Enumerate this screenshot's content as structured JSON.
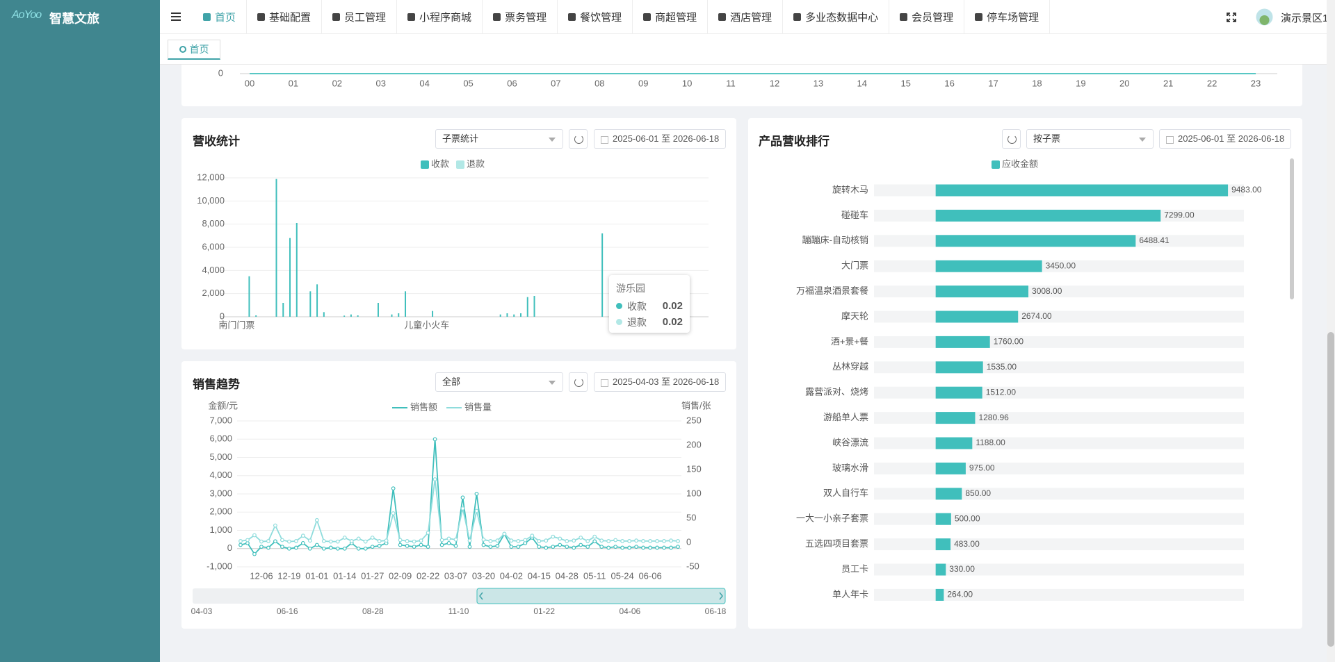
{
  "header": {
    "logo": "AoYoo",
    "brand": "智慧文旅",
    "nav": [
      "首页",
      "基础配置",
      "员工管理",
      "小程序商城",
      "票务管理",
      "餐饮管理",
      "商超管理",
      "酒店管理",
      "多业态数据中心",
      "会员管理",
      "停车场管理"
    ],
    "user": "演示景区1"
  },
  "tabs": [
    "首页"
  ],
  "chart_data": [
    {
      "type": "line",
      "categories": [
        "00",
        "01",
        "02",
        "03",
        "04",
        "05",
        "06",
        "07",
        "08",
        "09",
        "10",
        "11",
        "12",
        "13",
        "14",
        "15",
        "16",
        "17",
        "18",
        "19",
        "20",
        "21",
        "22",
        "23"
      ],
      "values": [
        0,
        0,
        0,
        0,
        0,
        0,
        0,
        0,
        0,
        0,
        0,
        0,
        0,
        0,
        0,
        0,
        0,
        0,
        0,
        0,
        0,
        0,
        0,
        0
      ],
      "color": "#40bfbc",
      "yticks": [
        0
      ],
      "grid": true
    },
    {
      "type": "bar",
      "title": "营收统计",
      "filter": "子票统计",
      "date_range": "2025-06-01 至 2026-06-18",
      "categories": [
        null,
        null,
        "南门门票",
        null,
        null,
        null,
        null,
        null,
        null,
        null,
        null,
        null,
        null,
        null,
        null,
        null,
        null,
        null,
        null,
        null,
        null,
        null,
        null,
        null,
        null,
        null,
        null,
        null,
        null,
        null,
        "儿童小火车",
        null,
        null,
        null,
        null,
        null,
        null,
        null,
        null,
        null,
        null,
        null,
        null,
        null,
        null,
        null,
        null,
        null,
        null,
        null,
        null,
        null,
        null,
        null,
        null,
        null,
        null,
        null,
        null,
        null,
        null,
        null,
        null,
        null,
        null,
        null,
        null,
        null,
        null,
        null,
        null,
        null
      ],
      "series": [
        {
          "name": "收款",
          "color": "#40bfbc",
          "values": [
            0,
            0,
            0,
            0,
            3500,
            120,
            0,
            0,
            11900,
            1200,
            6800,
            8100,
            0,
            2200,
            2800,
            400,
            0,
            0,
            100,
            200,
            120,
            0,
            0,
            1200,
            0,
            200,
            300,
            2200,
            0,
            0,
            0,
            500,
            0,
            0,
            0,
            0,
            0,
            0,
            0,
            0,
            0,
            200,
            300,
            200,
            300,
            1700,
            1800,
            0,
            0,
            0,
            0,
            0,
            0,
            0,
            0,
            0,
            7200,
            0,
            0,
            0,
            0,
            0,
            0,
            0,
            0,
            0,
            0,
            0,
            0,
            0,
            0,
            0
          ]
        },
        {
          "name": "退款",
          "color": "#b2e8e6",
          "values": [
            0,
            0,
            0,
            0,
            0,
            0,
            0,
            0,
            0,
            0,
            0,
            0,
            0,
            0,
            0,
            0,
            0,
            0,
            0,
            0,
            0,
            0,
            0,
            0,
            0,
            0,
            0,
            0,
            0,
            0,
            0,
            0,
            0,
            0,
            0,
            0,
            0,
            0,
            0,
            0,
            0,
            0,
            0,
            0,
            0,
            0,
            0,
            0,
            0,
            0,
            0,
            0,
            0,
            0,
            0,
            0,
            0,
            0,
            0,
            0,
            0,
            0,
            0,
            0,
            0,
            0,
            0,
            0,
            0,
            0,
            0,
            0
          ]
        }
      ],
      "ylim": [
        0,
        12000
      ],
      "yticks": [
        0,
        {
          "value": 2000,
          "label": "2,000"
        },
        {
          "value": 4000,
          "label": "4,000"
        },
        {
          "value": 6000,
          "label": "6,000"
        },
        {
          "value": 8000,
          "label": "8,000"
        },
        {
          "value": 10000,
          "label": "10,000"
        },
        {
          "value": 12000,
          "label": "12,000"
        }
      ],
      "grid": true,
      "legend": "top",
      "tooltip": {
        "title": "游乐园",
        "items": [
          {
            "name": "收款",
            "value": 0.02
          },
          {
            "name": "退款",
            "value": 0.02
          }
        ]
      }
    },
    {
      "type": "line",
      "title": "销售趋势",
      "filter": "全部",
      "date_range": "2025-04-03 至 2026-06-18",
      "ylabel": "金额/元",
      "y2label": "销售/张",
      "categories": [
        null,
        null,
        null,
        "12-06",
        null,
        null,
        null,
        "12-19",
        null,
        null,
        null,
        "01-01",
        null,
        null,
        null,
        "01-14",
        null,
        null,
        null,
        "01-27",
        null,
        null,
        null,
        "02-09",
        null,
        null,
        null,
        "02-22",
        null,
        null,
        null,
        "03-07",
        null,
        null,
        null,
        "03-20",
        null,
        null,
        null,
        "04-02",
        null,
        null,
        null,
        "04-15",
        null,
        null,
        null,
        "04-28",
        null,
        null,
        null,
        "05-11",
        null,
        null,
        null,
        "05-24",
        null,
        null,
        null,
        "06-06",
        null,
        null,
        null,
        null
      ],
      "series": [
        {
          "name": "销售额",
          "color": "#40bfbc",
          "values": [
            200,
            300,
            -300,
            100,
            50,
            400,
            100,
            0,
            50,
            300,
            0,
            200,
            0,
            50,
            0,
            0,
            300,
            0,
            0,
            100,
            150,
            300,
            3300,
            200,
            150,
            100,
            200,
            100,
            6000,
            200,
            300,
            150,
            2800,
            100,
            3000,
            200,
            100,
            150,
            800,
            100,
            100,
            300,
            600,
            100,
            50,
            100,
            200,
            100,
            50,
            200,
            100,
            400,
            100,
            50,
            100,
            50,
            50,
            100,
            50,
            50,
            50,
            50,
            50,
            100
          ]
        },
        {
          "name": "销售量",
          "color": "#8fdcdc",
          "axis": "y2",
          "values": [
            3,
            5,
            15,
            2,
            3,
            35,
            5,
            2,
            3,
            14,
            4,
            46,
            3,
            2,
            2,
            10,
            3,
            8,
            2,
            10,
            3,
            4,
            60,
            5,
            3,
            2,
            4,
            20,
            130,
            5,
            8,
            6,
            70,
            4,
            65,
            6,
            3,
            4,
            18,
            4,
            3,
            5,
            14,
            3,
            4,
            12,
            8,
            3,
            4,
            10,
            3,
            12,
            4,
            3,
            5,
            3,
            3,
            4,
            3,
            3,
            3,
            3,
            4,
            3
          ]
        }
      ],
      "ylim": [
        -1000,
        7000
      ],
      "yticks": [
        {
          "value": -1000,
          "label": "-1,000"
        },
        0,
        {
          "value": 1000,
          "label": "1,000"
        },
        {
          "value": 2000,
          "label": "2,000"
        },
        {
          "value": 3000,
          "label": "3,000"
        },
        {
          "value": 4000,
          "label": "4,000"
        },
        {
          "value": 5000,
          "label": "5,000"
        },
        {
          "value": 6000,
          "label": "6,000"
        },
        {
          "value": 7000,
          "label": "7,000"
        }
      ],
      "y2lim": [
        -50,
        250
      ],
      "y2ticks": [
        -50,
        0,
        50,
        100,
        150,
        200,
        250
      ],
      "grid": true,
      "legend": "top",
      "zoom_labels": [
        "04-03",
        "06-16",
        "08-28",
        "11-10",
        "01-22",
        "04-06",
        "06-18"
      ]
    },
    {
      "type": "hbar",
      "title": "产品营收排行",
      "filter": "按子票",
      "date_range": "2025-06-01 至 2026-06-18",
      "categories": [
        "旋转木马",
        "碰碰车",
        "蹦蹦床-自动核销",
        "大门票",
        "万福温泉酒景套餐",
        "摩天轮",
        "酒+景+餐",
        "丛林穿越",
        "露营派对、烧烤",
        "游船单人票",
        "峡谷漂流",
        "玻璃水滑",
        "双人自行车",
        "一大一小亲子套票",
        "五选四项目套票",
        "员工卡",
        "单人年卡"
      ],
      "series": [
        {
          "name": "应收金额",
          "color": "#40bfbc",
          "values": [
            9483,
            7299,
            6488.41,
            3450,
            3008,
            2674,
            1760,
            1535,
            1512,
            1280.96,
            1188,
            975,
            850,
            500,
            483,
            330,
            264
          ],
          "value_labels": [
            "9483.00",
            "7299.00",
            "6488.41",
            "3450.00",
            "3008.00",
            "2674.00",
            "1760.00",
            "1535.00",
            "1512.00",
            "1280.96",
            "1188.00",
            "975.00",
            "850.00",
            "500.00",
            "483.00",
            "330.00",
            "264.00"
          ]
        }
      ],
      "xlim": [
        -2000,
        10000
      ],
      "legend": "top"
    }
  ]
}
